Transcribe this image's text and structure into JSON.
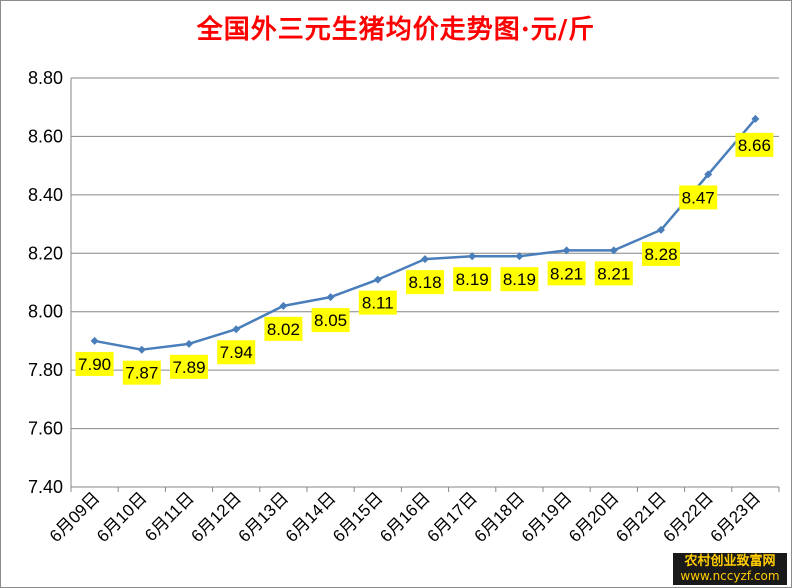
{
  "chart_data": {
    "type": "line",
    "title": "全国外三元生猪均价走势图·元/斤",
    "xlabel": "",
    "ylabel": "",
    "categories": [
      "6月09日",
      "6月10日",
      "6月11日",
      "6月12日",
      "6月13日",
      "6月14日",
      "6月15日",
      "6月16日",
      "6月17日",
      "6月18日",
      "6月19日",
      "6月20日",
      "6月21日",
      "6月22日",
      "6月23日"
    ],
    "series": [
      {
        "values": [
          7.9,
          7.87,
          7.89,
          7.94,
          8.02,
          8.05,
          8.11,
          8.18,
          8.19,
          8.19,
          8.21,
          8.21,
          8.28,
          8.47,
          8.66
        ],
        "labels": [
          "7.90",
          "7.87",
          "7.89",
          "7.94",
          "8.02",
          "8.05",
          "8.11",
          "8.18",
          "8.19",
          "8.19",
          "8.21",
          "8.21",
          "8.28",
          "8.47",
          "8.66"
        ],
        "color": "#4a7ebb",
        "label_background": "#ffff00"
      }
    ],
    "ylim": [
      7.4,
      8.8
    ],
    "yticks": [
      "7.40",
      "7.60",
      "7.80",
      "8.00",
      "8.20",
      "8.40",
      "8.60",
      "8.80"
    ],
    "grid": true,
    "legend": "none"
  },
  "colors": {
    "title": "#ff0000",
    "line": "#4a7ebb",
    "gridline": "#868686",
    "data_label_background": "#ffff00"
  },
  "watermark": {
    "line1": "农村创业致富网",
    "line2": "www.nccyzf.com"
  }
}
